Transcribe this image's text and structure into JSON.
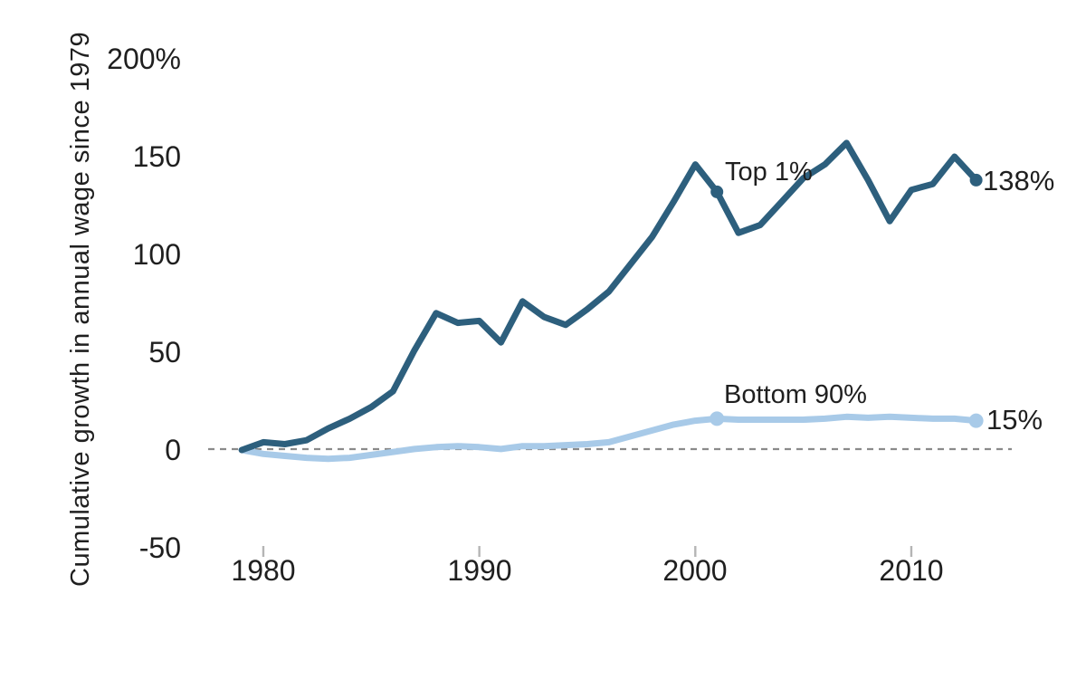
{
  "chart_data": {
    "type": "line",
    "ylabel": "Cumulative growth in annual wage since 1979",
    "xlabel": "",
    "x": [
      1979,
      1980,
      1981,
      1982,
      1983,
      1984,
      1985,
      1986,
      1987,
      1988,
      1989,
      1990,
      1991,
      1992,
      1993,
      1994,
      1995,
      1996,
      1997,
      1998,
      1999,
      2000,
      2001,
      2002,
      2003,
      2004,
      2005,
      2006,
      2007,
      2008,
      2009,
      2010,
      2011,
      2012,
      2013
    ],
    "series": [
      {
        "name": "Top 1%",
        "color": "#2d5f7d",
        "values": [
          0,
          4,
          3,
          5,
          11,
          16,
          22,
          30,
          51,
          70,
          65,
          66,
          55,
          76,
          68,
          64,
          72,
          81,
          95,
          109,
          127,
          146,
          132,
          111,
          115,
          127,
          139,
          146,
          157,
          138,
          117,
          133,
          136,
          150,
          138
        ]
      },
      {
        "name": "Bottom 90%",
        "color": "#a8cae8",
        "values": [
          0,
          -2,
          -3,
          -4,
          -4.5,
          -4,
          -2.5,
          -1,
          0.5,
          1.5,
          2,
          1.5,
          0.5,
          2,
          2,
          2.5,
          3,
          4,
          7,
          10,
          13,
          15,
          16,
          15.5,
          15.5,
          15.5,
          15.5,
          16,
          17,
          16.5,
          17,
          16.5,
          16,
          16,
          15
        ]
      }
    ],
    "yticks": [
      {
        "value": 200,
        "label": "200%"
      },
      {
        "value": 150,
        "label": "150"
      },
      {
        "value": 100,
        "label": "100"
      },
      {
        "value": 50,
        "label": "50"
      },
      {
        "value": 0,
        "label": "0"
      },
      {
        "value": -50,
        "label": "-50"
      }
    ],
    "xticks": [
      {
        "value": 1980,
        "label": "1980"
      },
      {
        "value": 1990,
        "label": "1990"
      },
      {
        "value": 2000,
        "label": "2000"
      },
      {
        "value": 2010,
        "label": "2010"
      }
    ],
    "ylim": [
      -50,
      200
    ],
    "xlim": [
      1979,
      2013
    ],
    "grid": false,
    "legend": "none",
    "zero_reference_line": true,
    "annotations": [
      {
        "text": "Top 1%",
        "series": "Top 1%",
        "year": 2001,
        "role": "series-label"
      },
      {
        "text": "138%",
        "series": "Top 1%",
        "year": 2013,
        "role": "end-value"
      },
      {
        "text": "Bottom 90%",
        "series": "Bottom 90%",
        "year": 2001,
        "role": "series-label"
      },
      {
        "text": "15%",
        "series": "Bottom 90%",
        "year": 2013,
        "role": "end-value"
      }
    ],
    "marker_points": [
      {
        "series_index": 0,
        "year": 2001
      },
      {
        "series_index": 0,
        "year": 2013
      },
      {
        "series_index": 1,
        "year": 2001
      },
      {
        "series_index": 1,
        "year": 2013
      }
    ],
    "colors": {
      "top_1_line": "#2d5f7d",
      "bottom_90_line": "#a8cae8",
      "zero_line": "#8a8a8a",
      "axis_tick_mark": "#b5b5b5",
      "text": "#1f1f1f"
    }
  }
}
